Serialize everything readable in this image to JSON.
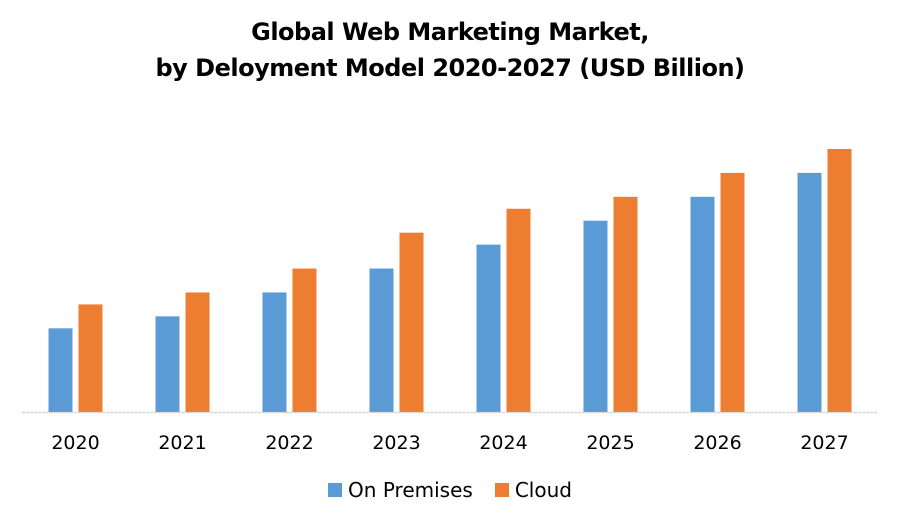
{
  "chart_data": {
    "type": "bar",
    "title": "Global Web Marketing Market,",
    "subtitle": "by Deloyment Model 2020-2027 (USD Billion)",
    "xlabel": "",
    "ylabel": "",
    "categories": [
      "2020",
      "2021",
      "2022",
      "2023",
      "2024",
      "2025",
      "2026",
      "2027"
    ],
    "series": [
      {
        "name": "On Premises",
        "color": "#5b9bd5",
        "values": [
          7,
          8,
          10,
          12,
          14,
          16,
          18,
          20
        ]
      },
      {
        "name": "Cloud",
        "color": "#ed7d31",
        "values": [
          9,
          10,
          12,
          15,
          17,
          18,
          20,
          22
        ]
      }
    ],
    "ylim": [
      0,
      22
    ],
    "y_axis_visible": false,
    "grid": false,
    "legend_position": "bottom",
    "note": "No y-axis scale shown; values are relative estimates read from bar heights."
  }
}
